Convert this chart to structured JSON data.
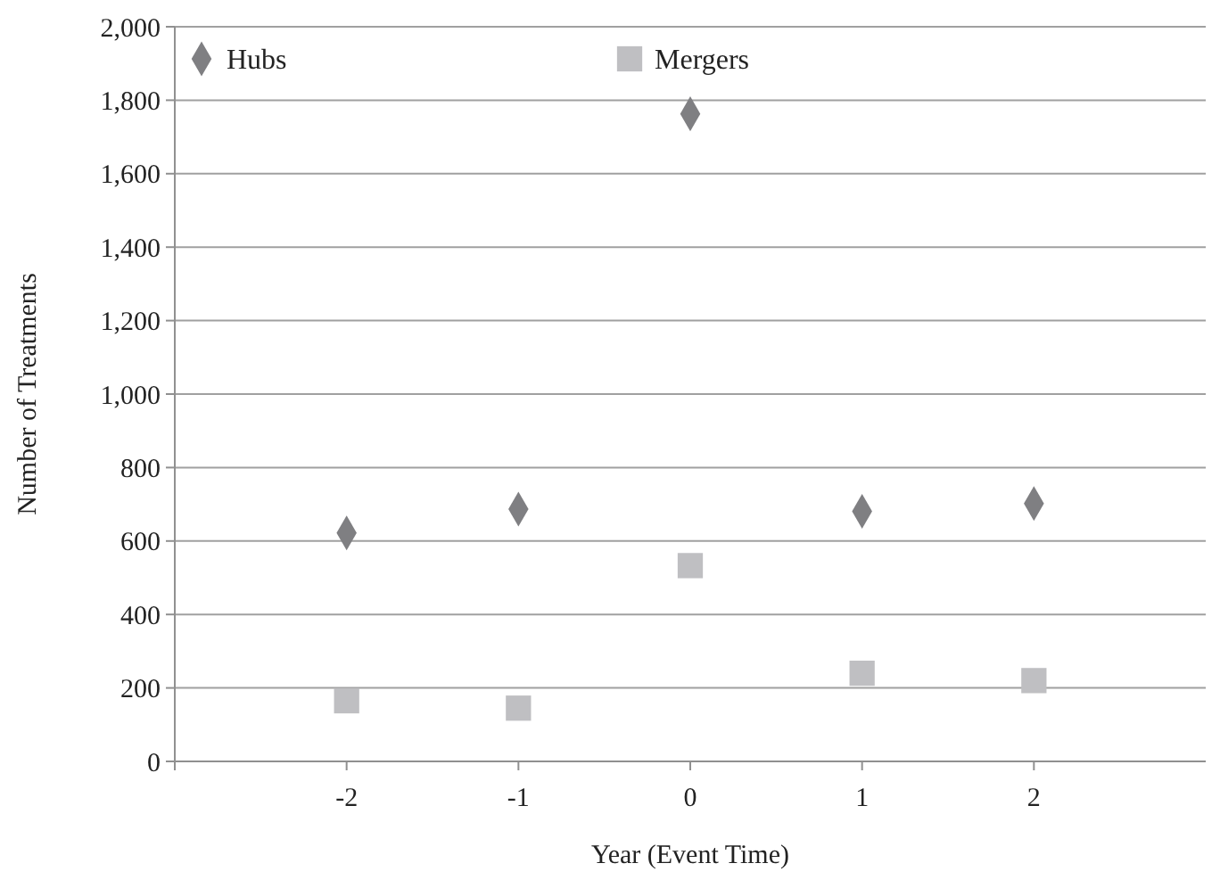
{
  "chart_data": {
    "type": "scatter",
    "xlabel": "Year (Event Time)",
    "ylabel": "Number of Treatments",
    "x": [
      -2,
      -1,
      0,
      1,
      2
    ],
    "series": [
      {
        "name": "Hubs",
        "color": "#7f7f82",
        "marker": "diamond",
        "values": [
          622,
          687,
          1763,
          681,
          702
        ]
      },
      {
        "name": "Mergers",
        "color": "#bfbfc2",
        "marker": "square",
        "values": [
          165,
          145,
          533,
          240,
          220
        ]
      }
    ],
    "xlim": [
      -3,
      3
    ],
    "xticks": [
      -2,
      -1,
      0,
      1,
      2
    ],
    "ylim": [
      0,
      2000
    ],
    "yticks": [
      0,
      {
        "value": 200,
        "label": "200"
      },
      {
        "value": 400,
        "label": "400"
      },
      {
        "value": 600,
        "label": "600"
      },
      {
        "value": 800,
        "label": "800"
      },
      {
        "value": 1000,
        "label": "1,000"
      },
      {
        "value": 1200,
        "label": "1,200"
      },
      {
        "value": 1400,
        "label": "1,400"
      },
      {
        "value": 1600,
        "label": "1,600"
      },
      {
        "value": 1800,
        "label": "1,800"
      },
      {
        "value": 2000,
        "label": "2,000"
      }
    ],
    "grid": "y",
    "legend": "top"
  }
}
